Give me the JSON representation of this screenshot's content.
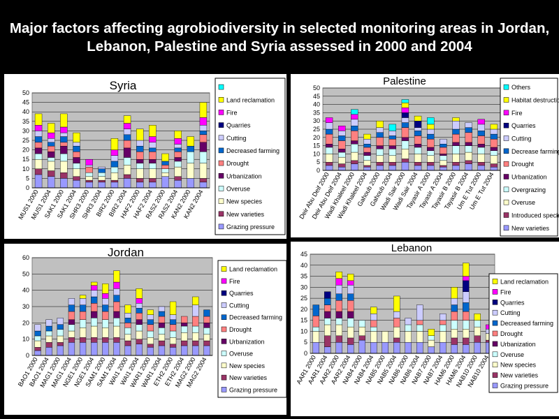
{
  "title": "Major factors affecting agrobiodiversity in selected monitoring areas in Jordan, Lebanon, Palestine and Syria assessed in 2000 and 2004",
  "chart_data": [
    {
      "type": "bar",
      "stacked": true,
      "title": "Syria",
      "ylim": [
        0,
        50
      ],
      "yticks": [
        0,
        5,
        10,
        15,
        20,
        25,
        30,
        35,
        40,
        45,
        50
      ],
      "categories": [
        "MUS1 2000",
        "MUS1 2004",
        "SAK1 2000",
        "SAK1 2004",
        "SHR3 2000",
        "SHR3 2004",
        "BIR2 2000",
        "BIR2 2004",
        "HAF2 2000",
        "HAF2 2004",
        "RAS2 2000",
        "RAS2 2004",
        "KAN2 2000",
        "KAN2 2004"
      ],
      "series": [
        {
          "name": "Grazing pressure",
          "color": "#9999ff",
          "values": [
            7,
            6,
            5,
            4,
            3,
            3,
            3,
            5,
            3,
            3,
            6,
            4,
            5,
            3
          ]
        },
        {
          "name": "New varieties",
          "color": "#993366",
          "values": [
            3,
            3,
            3,
            2,
            1,
            1,
            1,
            2,
            2,
            2,
            0,
            2,
            0,
            2
          ]
        },
        {
          "name": "New species",
          "color": "#ffffcc",
          "values": [
            5,
            5,
            6,
            4,
            2,
            2,
            4,
            5,
            5,
            5,
            2,
            5,
            8,
            8
          ]
        },
        {
          "name": "Overuse",
          "color": "#ccffff",
          "values": [
            3,
            2,
            4,
            3,
            2,
            2,
            3,
            4,
            3,
            3,
            2,
            3,
            6,
            6
          ]
        },
        {
          "name": "Urbanization",
          "color": "#660066",
          "values": [
            3,
            3,
            4,
            3,
            0,
            0,
            0,
            5,
            2,
            2,
            0,
            2,
            0,
            5
          ]
        },
        {
          "name": "Drought",
          "color": "#ff8080",
          "values": [
            3,
            3,
            2,
            3,
            3,
            0,
            0,
            4,
            4,
            4,
            2,
            3,
            0,
            4
          ]
        },
        {
          "name": "Decreased farming",
          "color": "#0066cc",
          "values": [
            3,
            2,
            3,
            3,
            0,
            2,
            3,
            3,
            3,
            2,
            2,
            2,
            3,
            2
          ]
        },
        {
          "name": "Cutting",
          "color": "#ccccff",
          "values": [
            3,
            2,
            2,
            2,
            1,
            1,
            3,
            3,
            3,
            3,
            0,
            2,
            0,
            3
          ]
        },
        {
          "name": "Quarries",
          "color": "#000080",
          "values": [
            0,
            0,
            0,
            0,
            0,
            0,
            0,
            0,
            0,
            0,
            0,
            0,
            0,
            0
          ]
        },
        {
          "name": "Fire",
          "color": "#ff00ff",
          "values": [
            3,
            3,
            3,
            0,
            3,
            0,
            3,
            3,
            0,
            3,
            0,
            3,
            0,
            4
          ]
        },
        {
          "name": "Land reclamation",
          "color": "#ffff00",
          "values": [
            6,
            5,
            7,
            5,
            0,
            0,
            6,
            4,
            6,
            6,
            4,
            4,
            5,
            8
          ]
        },
        {
          "name": "",
          "color": "#00ffff",
          "values": [
            0,
            0,
            0,
            0,
            0,
            0,
            0,
            0,
            0,
            0,
            0,
            0,
            0,
            0
          ]
        }
      ]
    },
    {
      "type": "bar",
      "stacked": true,
      "title": "Palestine",
      "ylim": [
        0,
        50
      ],
      "yticks": [
        0,
        5,
        10,
        15,
        20,
        25,
        30,
        35,
        40,
        45,
        50
      ],
      "categories": [
        "Deir Abu Deif 2000",
        "Deir Abu Deif 2004",
        "Wadi Khaleel 2000",
        "Wadi Khaleel 2004",
        "Gahoub 2000",
        "Gahoub 2004",
        "Wadi Sair 2000",
        "Wadi Sair 2004",
        "Tayasir A 2000",
        "Tayasir A 2004",
        "Tayasir B 2000",
        "Tayasir B 2004",
        "Um E Tut 2000",
        "Um E Tut 2004"
      ],
      "series": [
        {
          "name": "New varieties",
          "color": "#9999ff",
          "values": [
            3,
            2,
            4,
            2,
            3,
            3,
            5,
            3,
            3,
            2,
            3,
            4,
            3,
            2
          ]
        },
        {
          "name": "Introduced species",
          "color": "#993366",
          "values": [
            2,
            2,
            2,
            1,
            2,
            2,
            2,
            2,
            2,
            1,
            2,
            2,
            2,
            2
          ]
        },
        {
          "name": "Overuse",
          "color": "#ffffcc",
          "values": [
            5,
            4,
            5,
            3,
            4,
            4,
            6,
            5,
            4,
            3,
            5,
            5,
            5,
            5
          ]
        },
        {
          "name": "Overgrazing",
          "color": "#ccffff",
          "values": [
            4,
            3,
            5,
            3,
            4,
            4,
            5,
            4,
            3,
            3,
            5,
            4,
            4,
            3
          ]
        },
        {
          "name": "Urbanization",
          "color": "#660066",
          "values": [
            2,
            2,
            2,
            2,
            2,
            2,
            2,
            2,
            2,
            1,
            2,
            2,
            2,
            2
          ]
        },
        {
          "name": "Drought",
          "color": "#ff8080",
          "values": [
            6,
            5,
            6,
            3,
            5,
            4,
            6,
            5,
            5,
            4,
            5,
            6,
            5,
            5
          ]
        },
        {
          "name": "Decrease farming",
          "color": "#0066cc",
          "values": [
            3,
            3,
            3,
            2,
            3,
            2,
            3,
            3,
            3,
            2,
            3,
            3,
            3,
            3
          ]
        },
        {
          "name": "Cutting",
          "color": "#ccccff",
          "values": [
            4,
            3,
            4,
            3,
            3,
            3,
            3,
            2,
            3,
            3,
            5,
            3,
            4,
            3
          ]
        },
        {
          "name": "Quarries",
          "color": "#000080",
          "values": [
            0,
            0,
            0,
            0,
            0,
            0,
            3,
            4,
            0,
            0,
            0,
            0,
            0,
            0
          ]
        },
        {
          "name": "Fire",
          "color": "#ff00ff",
          "values": [
            3,
            3,
            3,
            0,
            0,
            0,
            3,
            0,
            0,
            0,
            0,
            0,
            3,
            0
          ]
        },
        {
          "name": "Habitat destruction",
          "color": "#ffff00",
          "values": [
            0,
            0,
            0,
            3,
            4,
            0,
            3,
            3,
            3,
            0,
            2,
            0,
            0,
            3
          ]
        },
        {
          "name": "Others",
          "color": "#00ffff",
          "values": [
            0,
            0,
            3,
            0,
            0,
            4,
            2,
            0,
            4,
            0,
            0,
            0,
            0,
            0
          ]
        }
      ]
    },
    {
      "type": "bar",
      "stacked": true,
      "title": "Jordan",
      "ylim": [
        0,
        60
      ],
      "yticks": [
        0,
        10,
        20,
        30,
        40,
        50,
        60
      ],
      "categories": [
        "BAO1 2000",
        "BAO1 2004",
        "MAG1 2000",
        "MAG1 2004",
        "NGE1 2000",
        "NGE1 2004",
        "SAM1 2000",
        "SAM1 2004",
        "WAI1 2000",
        "WAI1 2004",
        "WAR1 2000",
        "WAR1 2004",
        "ETH2 2000",
        "ETH2 2004",
        "MAG2 2000",
        "MAG2 2004"
      ],
      "series": [
        {
          "name": "Grazing pressure",
          "color": "#9999ff",
          "values": [
            3,
            5,
            6,
            8,
            8,
            8,
            8,
            8,
            6,
            7,
            5,
            6,
            5,
            6,
            6,
            6
          ]
        },
        {
          "name": "New varieties",
          "color": "#993366",
          "values": [
            2,
            3,
            2,
            3,
            3,
            3,
            3,
            3,
            3,
            3,
            2,
            3,
            2,
            3,
            3,
            3
          ]
        },
        {
          "name": "New species",
          "color": "#ffffcc",
          "values": [
            4,
            4,
            4,
            4,
            6,
            7,
            6,
            7,
            4,
            5,
            4,
            4,
            4,
            5,
            5,
            4
          ]
        },
        {
          "name": "Overuse",
          "color": "#ccffff",
          "values": [
            3,
            3,
            4,
            4,
            5,
            5,
            5,
            5,
            4,
            4,
            4,
            4,
            4,
            4,
            4,
            4
          ]
        },
        {
          "name": "Urbanization",
          "color": "#660066",
          "values": [
            0,
            0,
            0,
            3,
            0,
            4,
            0,
            4,
            0,
            3,
            0,
            3,
            0,
            2,
            0,
            3
          ]
        },
        {
          "name": "Drought",
          "color": "#ff8080",
          "values": [
            0,
            0,
            0,
            5,
            5,
            5,
            5,
            6,
            3,
            4,
            4,
            4,
            4,
            4,
            6,
            4
          ]
        },
        {
          "name": "Decreased farming",
          "color": "#0066cc",
          "values": [
            3,
            3,
            3,
            4,
            4,
            4,
            4,
            4,
            3,
            3,
            3,
            3,
            3,
            0,
            0,
            4
          ]
        },
        {
          "name": "Cutting",
          "color": "#ccccff",
          "values": [
            4,
            4,
            4,
            4,
            4,
            4,
            4,
            4,
            3,
            3,
            3,
            3,
            3,
            0,
            7,
            0
          ]
        },
        {
          "name": "Quarries",
          "color": "#000080",
          "values": [
            0,
            0,
            0,
            0,
            0,
            0,
            0,
            0,
            0,
            0,
            0,
            0,
            0,
            0,
            0,
            0
          ]
        },
        {
          "name": "Fire",
          "color": "#ff00ff",
          "values": [
            0,
            0,
            0,
            0,
            0,
            3,
            3,
            4,
            0,
            3,
            0,
            0,
            0,
            0,
            0,
            0
          ]
        },
        {
          "name": "Land reclamation",
          "color": "#ffff00",
          "values": [
            0,
            0,
            0,
            0,
            2,
            2,
            6,
            7,
            5,
            6,
            3,
            0,
            8,
            0,
            5,
            0
          ]
        }
      ]
    },
    {
      "type": "bar",
      "stacked": true,
      "title": "Lebanon",
      "ylim": [
        0,
        45
      ],
      "yticks": [
        0,
        5,
        10,
        15,
        20,
        25,
        30,
        35,
        40,
        45
      ],
      "categories": [
        "AAR1 2000",
        "AAR1 2004",
        "AAR2 2000",
        "AAR2 2004",
        "NAB4 2000",
        "NAB4 2004",
        "NAB5 2000",
        "NAB5 2004",
        "NAB6 2000",
        "NAB6 2004",
        "NAB7 2000",
        "NAB7 2004",
        "HAM6 2000",
        "HAM6 2004",
        "NAB10 2000",
        "NAB10 2004"
      ],
      "series": [
        {
          "name": "Grazing pressure",
          "color": "#9999ff",
          "values": [
            5,
            3,
            5,
            4,
            6,
            5,
            5,
            5,
            5,
            5,
            3,
            5,
            4,
            4,
            5,
            5
          ]
        },
        {
          "name": "New varieties",
          "color": "#993366",
          "values": [
            0,
            5,
            3,
            3,
            2,
            0,
            0,
            2,
            0,
            0,
            0,
            0,
            3,
            3,
            3,
            1
          ]
        },
        {
          "name": "New species",
          "color": "#ffffcc",
          "values": [
            5,
            5,
            5,
            5,
            4,
            5,
            5,
            5,
            5,
            5,
            3,
            5,
            4,
            4,
            4,
            3
          ]
        },
        {
          "name": "Overuse",
          "color": "#ccffff",
          "values": [
            2,
            3,
            3,
            4,
            3,
            2,
            0,
            0,
            3,
            3,
            2,
            3,
            4,
            4,
            3,
            0
          ]
        },
        {
          "name": "Urbanization",
          "color": "#660066",
          "values": [
            0,
            3,
            3,
            3,
            0,
            0,
            0,
            0,
            0,
            0,
            0,
            0,
            0,
            0,
            0,
            0
          ]
        },
        {
          "name": "Drought",
          "color": "#ff8080",
          "values": [
            5,
            3,
            5,
            5,
            0,
            3,
            0,
            4,
            0,
            2,
            0,
            2,
            4,
            4,
            0,
            0
          ]
        },
        {
          "name": "Decreased farming",
          "color": "#0066cc",
          "values": [
            5,
            3,
            3,
            3,
            0,
            0,
            0,
            0,
            0,
            0,
            0,
            0,
            3,
            4,
            0,
            0
          ]
        },
        {
          "name": "Cutting",
          "color": "#ccccff",
          "values": [
            0,
            0,
            4,
            4,
            0,
            3,
            0,
            3,
            3,
            7,
            0,
            3,
            3,
            5,
            0,
            2
          ]
        },
        {
          "name": "Quarries",
          "color": "#000080",
          "values": [
            0,
            3,
            0,
            0,
            0,
            0,
            0,
            0,
            0,
            0,
            0,
            0,
            0,
            5,
            0,
            0
          ]
        },
        {
          "name": "Fire",
          "color": "#ff00ff",
          "values": [
            0,
            0,
            3,
            2,
            0,
            0,
            0,
            0,
            0,
            0,
            0,
            0,
            0,
            2,
            0,
            2
          ]
        },
        {
          "name": "Land reclamation",
          "color": "#ffff00",
          "values": [
            0,
            0,
            3,
            3,
            0,
            3,
            0,
            7,
            0,
            0,
            3,
            0,
            5,
            6,
            3,
            0
          ]
        }
      ]
    }
  ]
}
